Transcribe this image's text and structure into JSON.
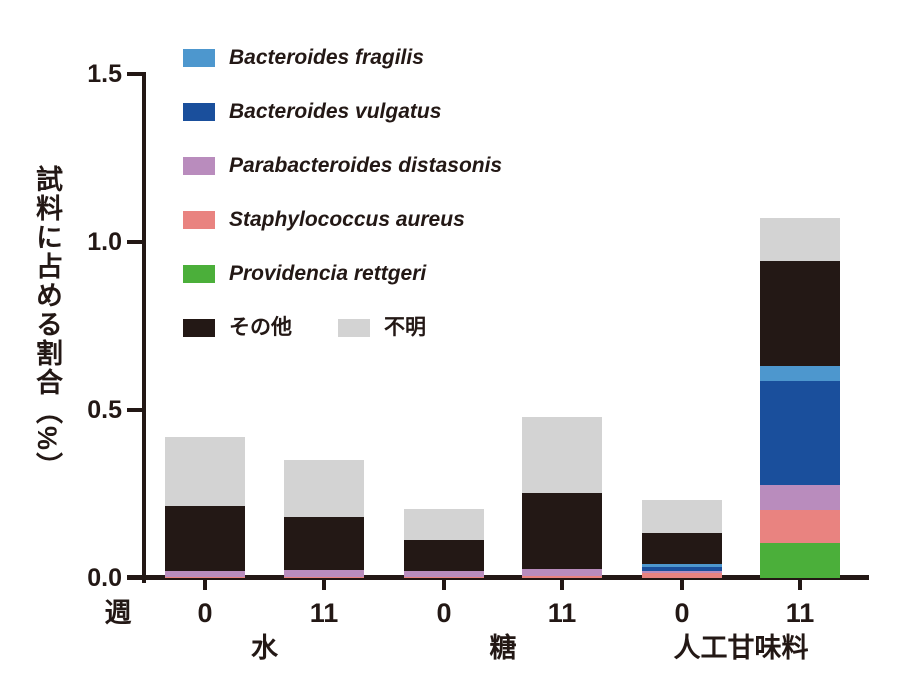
{
  "figure": {
    "ylabel": "試料に占める割合（%）",
    "week_axis_label": "週"
  },
  "colors": {
    "fragilis": "#4D97CE",
    "vulgatus": "#1A4F9C",
    "distasonis": "#B98CBD",
    "aureus": "#E98380",
    "rettgeri": "#4BAF3A",
    "other": "#231815",
    "unknown": "#D3D3D3",
    "axis": "#231815",
    "text": "#231815"
  },
  "legend": {
    "items": [
      {
        "key": "fragilis",
        "label": "Bacteroides fragilis",
        "italic": true
      },
      {
        "key": "vulgatus",
        "label": "Bacteroides vulgatus",
        "italic": true
      },
      {
        "key": "distasonis",
        "label": "Parabacteroides distasonis",
        "italic": true
      },
      {
        "key": "aureus",
        "label": "Staphylococcus aureus",
        "italic": true
      },
      {
        "key": "rettgeri",
        "label": "Providencia rettgeri",
        "italic": true
      },
      {
        "key": "other",
        "label": "その他",
        "italic": false
      },
      {
        "key": "unknown",
        "label": "不明",
        "italic": false
      }
    ]
  },
  "chart_data": {
    "type": "bar",
    "stacked": true,
    "title": "",
    "ylabel": "試料に占める割合（%）",
    "xlabel": "週",
    "ylim": [
      0,
      1.5
    ],
    "y_ticks": [
      0.0,
      0.5,
      1.0,
      1.5
    ],
    "grid": false,
    "legend_position": "upper-left-inside",
    "stack_order_bottom_to_top": [
      "rettgeri",
      "aureus",
      "distasonis",
      "vulgatus",
      "fragilis",
      "other",
      "unknown"
    ],
    "groups": [
      "水",
      "糖",
      "人工甘味料"
    ],
    "bars": [
      {
        "group": "水",
        "week": "0",
        "values": {
          "fragilis": 0,
          "vulgatus": 0,
          "distasonis": 0.018,
          "aureus": 0.004,
          "rettgeri": 0,
          "other": 0.193,
          "unknown": 0.205
        },
        "total": 0.42
      },
      {
        "group": "水",
        "week": "11",
        "values": {
          "fragilis": 0,
          "vulgatus": 0,
          "distasonis": 0.02,
          "aureus": 0.004,
          "rettgeri": 0,
          "other": 0.158,
          "unknown": 0.168
        },
        "total": 0.35
      },
      {
        "group": "糖",
        "week": "0",
        "values": {
          "fragilis": 0,
          "vulgatus": 0,
          "distasonis": 0.018,
          "aureus": 0.004,
          "rettgeri": 0,
          "other": 0.091,
          "unknown": 0.092
        },
        "total": 0.205
      },
      {
        "group": "糖",
        "week": "11",
        "values": {
          "fragilis": 0,
          "vulgatus": 0,
          "distasonis": 0.022,
          "aureus": 0.005,
          "rettgeri": 0,
          "other": 0.226,
          "unknown": 0.227
        },
        "total": 0.48
      },
      {
        "group": "人工甘味料",
        "week": "0",
        "values": {
          "fragilis": 0.008,
          "vulgatus": 0.012,
          "distasonis": 0.006,
          "aureus": 0.015,
          "rettgeri": 0,
          "other": 0.092,
          "unknown": 0.098
        },
        "total": 0.231
      },
      {
        "group": "人工甘味料",
        "week": "11",
        "values": {
          "fragilis": 0.045,
          "vulgatus": 0.31,
          "distasonis": 0.074,
          "aureus": 0.098,
          "rettgeri": 0.104,
          "other": 0.313,
          "unknown": 0.128
        },
        "total": 1.072
      }
    ]
  }
}
